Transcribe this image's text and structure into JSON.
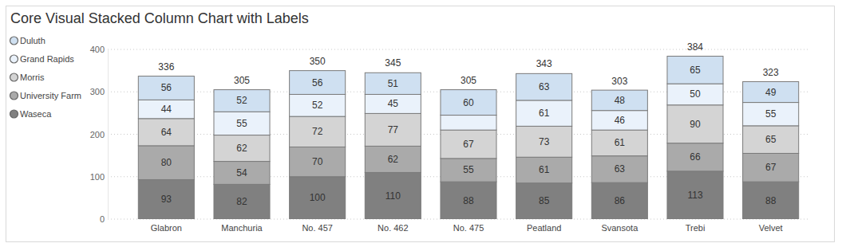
{
  "chart_data": {
    "type": "bar",
    "title": "Core Visual Stacked Column Chart with Labels",
    "categories": [
      "Glabron",
      "Manchuria",
      "No. 457",
      "No. 462",
      "No. 475",
      "Peatland",
      "Svansota",
      "Trebi",
      "Velvet"
    ],
    "series": [
      {
        "name": "Duluth",
        "color": "#cfe0f1",
        "values": [
          56,
          52,
          56,
          51,
          60,
          63,
          48,
          65,
          49
        ]
      },
      {
        "name": "Grand Rapids",
        "color": "#eaf2fb",
        "values": [
          44,
          55,
          52,
          45,
          35,
          61,
          46,
          50,
          55
        ],
        "value_labels": [
          "44",
          "55",
          "52",
          "45",
          null,
          "61",
          "46",
          "50",
          "55"
        ]
      },
      {
        "name": "Morris",
        "color": "#d4d4d4",
        "values": [
          64,
          62,
          72,
          77,
          67,
          73,
          61,
          90,
          65
        ]
      },
      {
        "name": "University Farm",
        "color": "#aaaaaa",
        "values": [
          80,
          54,
          70,
          62,
          55,
          61,
          63,
          66,
          67
        ]
      },
      {
        "name": "Waseca",
        "color": "#808080",
        "values": [
          93,
          82,
          100,
          110,
          88,
          85,
          86,
          113,
          88
        ]
      }
    ],
    "totals": [
      336,
      305,
      350,
      345,
      305,
      343,
      303,
      384,
      323
    ],
    "ylim": [
      0,
      400
    ],
    "yticks": [
      0,
      100,
      200,
      300,
      400
    ],
    "grid": true,
    "stacked": true,
    "data_labels": true,
    "legend": "top-left"
  }
}
